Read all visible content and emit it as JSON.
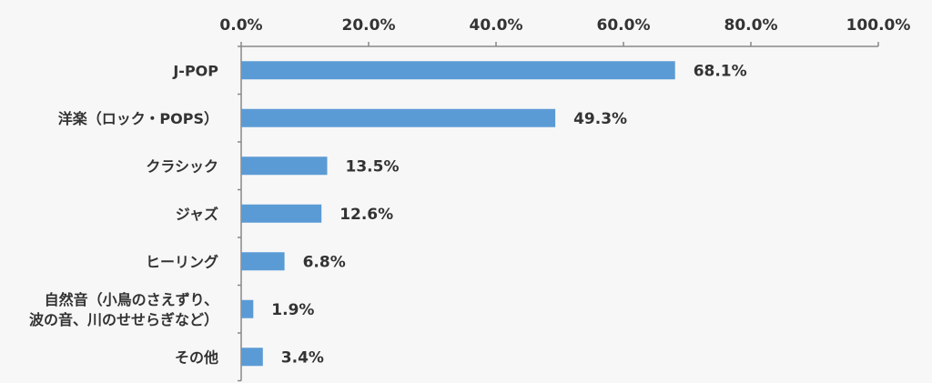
{
  "chart_data": {
    "type": "bar",
    "orientation": "horizontal",
    "title": "",
    "xlabel": "",
    "ylabel": "",
    "xlim": [
      0,
      100
    ],
    "x_ticks": [
      "0.0%",
      "20.0%",
      "40.0%",
      "60.0%",
      "80.0%",
      "100.0%"
    ],
    "x_axis_position": "top",
    "grid": false,
    "bar_color": "#5b9bd5",
    "categories": [
      [
        "J-POP"
      ],
      [
        "洋楽（ロック・POPS）"
      ],
      [
        "クラシック"
      ],
      [
        "ジャズ"
      ],
      [
        "ヒーリング"
      ],
      [
        "自然音（小鳥のさえずり、",
        "波の音、川のせせらぎなど）"
      ],
      [
        "その他"
      ]
    ],
    "values": [
      68.1,
      49.3,
      13.5,
      12.6,
      6.8,
      1.9,
      3.4
    ],
    "data_labels": [
      "68.1%",
      "49.3%",
      "13.5%",
      "12.6%",
      "6.8%",
      "1.9%",
      "3.4%"
    ]
  }
}
